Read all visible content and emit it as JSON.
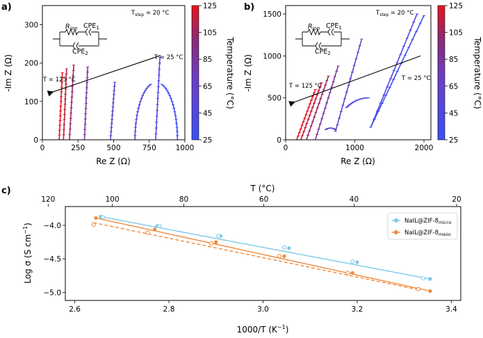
{
  "chart_data": [
    {
      "panel": "a)",
      "type": "scatter",
      "subtype": "nyquist",
      "xlabel": "Re Z (Ω)",
      "ylabel": "-Im Z (Ω)",
      "xlim": [
        0,
        1000
      ],
      "ylim": [
        0,
        350
      ],
      "xticks": [
        "0",
        "250",
        "500",
        "750",
        "1000"
      ],
      "yticks": [
        "0",
        "100",
        "200",
        "300"
      ],
      "tstep_label": "T",
      "tstep_sub": "step",
      "tstep_value": " = 20 °C",
      "t_low_label": "T = 25 °C",
      "t_high_label": "T = 125 °C",
      "circuit": {
        "r_main": "R",
        "r_sub": "ion",
        "cpe1_main": "CPE",
        "cpe1_sub": "1",
        "cpe2_main": "CPE",
        "cpe2_sub": "2"
      },
      "colorbar": {
        "label": "Temperature (°C)",
        "ticks": [
          "25",
          "45",
          "65",
          "85",
          "105",
          "125"
        ],
        "low_color": "#3b50f5",
        "high_color": "#e8141e"
      },
      "arrow": {
        "from": [
          830,
          220
        ],
        "to": [
          75,
          125
        ]
      },
      "series": [
        {
          "temp": 125,
          "sections": [
            {
              "type": "line",
              "x": [
                118,
                140
              ],
              "y": [
                0,
                175
              ]
            }
          ]
        },
        {
          "temp": 115,
          "sections": [
            {
              "type": "line",
              "x": [
                148,
                170
              ],
              "y": [
                0,
                185
              ]
            }
          ]
        },
        {
          "temp": 105,
          "sections": [
            {
              "type": "line",
              "x": [
                190,
                220
              ],
              "y": [
                0,
                195
              ]
            }
          ]
        },
        {
          "temp": 85,
          "sections": [
            {
              "type": "line",
              "x": [
                295,
                318
              ],
              "y": [
                0,
                190
              ]
            }
          ]
        },
        {
          "temp": 65,
          "sections": [
            {
              "type": "line",
              "x": [
                478,
                508
              ],
              "y": [
                0,
                150
              ]
            }
          ]
        },
        {
          "temp": 45,
          "sections": [
            {
              "type": "arc",
              "cx": 800,
              "r": 150,
              "t0": 105,
              "t1": 180
            },
            {
              "type": "line",
              "x": [
                795,
                825
              ],
              "y": [
                0,
                215
              ]
            }
          ]
        },
        {
          "temp": 25,
          "sections": [
            {
              "type": "arc",
              "cx": 798,
              "r": 150,
              "t0": 75,
              "t1": 0
            }
          ]
        }
      ]
    },
    {
      "panel": "b)",
      "type": "scatter",
      "subtype": "nyquist",
      "xlabel": "Re Z (Ω)",
      "ylabel": "-Im Z (Ω)",
      "xlim": [
        0,
        2100
      ],
      "ylim": [
        0,
        1600
      ],
      "xticks": [
        "0",
        "1000",
        "2000"
      ],
      "yticks": [
        "0",
        "500",
        "1000",
        "1500"
      ],
      "tstep_label": "T",
      "tstep_sub": "step",
      "tstep_value": " = 20 °C",
      "t_low_label": "T = 25 °C",
      "t_high_label": "T = 125 °C",
      "circuit": {
        "r_main": "R",
        "r_sub": "ion",
        "cpe1_main": "CPE",
        "cpe1_sub": "1",
        "cpe2_main": "CPE",
        "cpe2_sub": "2"
      },
      "colorbar": {
        "label": "Temperature (°C)",
        "ticks": [
          "25",
          "45",
          "65",
          "85",
          "105",
          "125"
        ],
        "low_color": "#3b50f5",
        "high_color": "#e8141e"
      },
      "arrow": {
        "from": [
          1950,
          1000
        ],
        "to": [
          130,
          450
        ]
      },
      "series": [
        {
          "temp": 125,
          "sections": [
            {
              "type": "line",
              "x": [
                160,
                430
              ],
              "y": [
                0,
                600
              ]
            }
          ]
        },
        {
          "temp": 115,
          "sections": [
            {
              "type": "line",
              "x": [
                220,
                520
              ],
              "y": [
                0,
                680
              ]
            }
          ]
        },
        {
          "temp": 105,
          "sections": [
            {
              "type": "line",
              "x": [
                300,
                620
              ],
              "y": [
                0,
                760
              ]
            }
          ]
        },
        {
          "temp": 85,
          "sections": [
            {
              "type": "line",
              "x": [
                430,
                760
              ],
              "y": [
                0,
                880
              ]
            }
          ]
        },
        {
          "temp": 65,
          "sections": [
            {
              "type": "arc",
              "cx": 650,
              "r": 140,
              "t0": 120,
              "t1": 60
            },
            {
              "type": "line",
              "x": [
                720,
                1100
              ],
              "y": [
                100,
                1200
              ]
            }
          ]
        },
        {
          "temp": 45,
          "sections": [
            {
              "type": "arc",
              "cx": 1200,
              "r": 500,
              "t0": 130,
              "t1": 90
            },
            {
              "type": "line",
              "x": [
                1230,
                1900
              ],
              "y": [
                150,
                1500
              ]
            }
          ]
        },
        {
          "temp": 25,
          "sections": [
            {
              "type": "line",
              "x": [
                1230,
                2000
              ],
              "y": [
                150,
                1480
              ]
            }
          ]
        }
      ]
    },
    {
      "panel": "c)",
      "type": "scatter",
      "subtype": "arrhenius",
      "xlabel_main": "1000/T (K",
      "xlabel_sup": "−1",
      "xlabel_end": ")",
      "ylabel_main": "Log σ (S cm",
      "ylabel_sup": "−1",
      "ylabel_end": ")",
      "top_xlabel": "T (°C)",
      "xlim": [
        2.58,
        3.42
      ],
      "ylim": [
        -5.12,
        -3.72
      ],
      "xticks": [
        "2.6",
        "2.8",
        "3.0",
        "3.2",
        "3.4"
      ],
      "yticks": [
        "−4.0",
        "−4.5",
        "−5.0"
      ],
      "top_ticks": [
        "120",
        "100",
        "80",
        "60",
        "40",
        "20"
      ],
      "legend": [
        {
          "main": "NaIL@ZIF-8",
          "sub": "micro",
          "color": "#7ec8e8"
        },
        {
          "main": "NaIL@ZIF-8",
          "sub": "meso",
          "color": "#f0893c"
        }
      ],
      "series": [
        {
          "name": "NaIL@ZIF-8 micro (filled)",
          "color": "#7ec8e8",
          "filled": true,
          "dashed": false,
          "x": [
            2.655,
            2.775,
            2.91,
            3.055,
            3.2,
            3.355
          ],
          "y": [
            -3.87,
            -4.01,
            -4.16,
            -4.34,
            -4.55,
            -4.8
          ],
          "fit": [
            [
              2.655,
              -3.87
            ],
            [
              3.355,
              -4.8
            ]
          ]
        },
        {
          "name": "NaIL@ZIF-8 meso (filled)",
          "color": "#f0893c",
          "filled": true,
          "dashed": false,
          "x": [
            2.645,
            2.77,
            2.9,
            3.045,
            3.19,
            3.355
          ],
          "y": [
            -3.89,
            -4.06,
            -4.25,
            -4.46,
            -4.71,
            -4.98
          ],
          "fit": [
            [
              2.645,
              -3.89
            ],
            [
              3.355,
              -4.98
            ]
          ]
        },
        {
          "name": "NaIL@ZIF-8 meso (open)",
          "color": "#f0893c",
          "filled": false,
          "dashed": true,
          "x": [
            2.64,
            2.755,
            2.89,
            3.035,
            3.18,
            3.33
          ],
          "y": [
            -3.99,
            -4.11,
            -4.27,
            -4.46,
            -4.71,
            -4.95
          ],
          "fit": [
            [
              2.64,
              -3.96
            ],
            [
              3.33,
              -4.96
            ]
          ]
        },
        {
          "name": "NaIL@ZIF-8 micro (open)",
          "color": "#7ec8e8",
          "filled": false,
          "dashed": true,
          "x": [
            2.66,
            2.78,
            2.905,
            3.045,
            3.19,
            3.34
          ],
          "y": [
            -3.88,
            -4.01,
            -4.16,
            -4.33,
            -4.54,
            -4.79
          ],
          "fit": []
        }
      ]
    }
  ]
}
